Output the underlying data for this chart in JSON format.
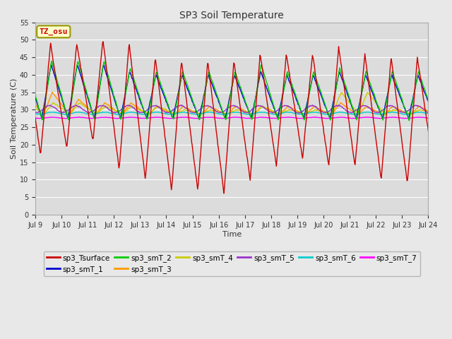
{
  "title": "SP3 Soil Temperature",
  "xlabel": "Time",
  "ylabel": "Soil Temperature (C)",
  "annotation": "TZ_osu",
  "annotation_color": "#cc0000",
  "annotation_bg": "#ffffcc",
  "annotation_border": "#999900",
  "ylim": [
    0,
    55
  ],
  "yticks": [
    0,
    5,
    10,
    15,
    20,
    25,
    30,
    35,
    40,
    45,
    50,
    55
  ],
  "bg_color": "#e8e8e8",
  "plot_bg": "#dcdcdc",
  "grid_color": "#ffffff",
  "series_colors": {
    "sp3_Tsurface": "#cc0000",
    "sp3_smT_1": "#0000cc",
    "sp3_smT_2": "#00cc00",
    "sp3_smT_3": "#ff9900",
    "sp3_smT_4": "#cccc00",
    "sp3_smT_5": "#9933cc",
    "sp3_smT_6": "#00cccc",
    "sp3_smT_7": "#ff00ff"
  },
  "surface_peaks": [
    49,
    49,
    50,
    49,
    45,
    44,
    44,
    44,
    46,
    46,
    46,
    48,
    46,
    45,
    45,
    45
  ],
  "surface_troughs": [
    17,
    19,
    21,
    13,
    10,
    7,
    7,
    6,
    10,
    14,
    16,
    14,
    14,
    10,
    9,
    14
  ],
  "smT1_peaks": [
    43,
    43,
    43,
    41,
    40,
    40,
    40,
    40,
    41,
    40,
    40,
    41,
    40,
    40,
    40,
    40
  ],
  "smT2_peaks": [
    44,
    44,
    44,
    42,
    41,
    41,
    41,
    41,
    43,
    41,
    41,
    42,
    41,
    41,
    41,
    41
  ],
  "smT3_peaks": [
    35,
    33,
    32,
    32,
    31,
    31,
    31,
    31,
    31,
    31,
    31,
    32,
    31,
    31,
    31,
    31
  ],
  "smT4_peaks": [
    32,
    32,
    31,
    31,
    31,
    30,
    30,
    30,
    31,
    30,
    30,
    35,
    35,
    30,
    30,
    30
  ],
  "smT5_base": 30.2,
  "smT5_amp": 1.0,
  "smT6_base": 29.0,
  "smT6_amp": 0.3,
  "smT7_base": 27.7,
  "smT7_amp": 0.15
}
